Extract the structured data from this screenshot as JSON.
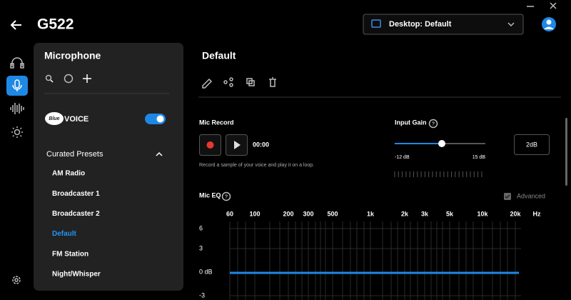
{
  "header": {
    "title": "G522",
    "profile": "Desktop: Default"
  },
  "panel": {
    "title": "Microphone",
    "brand": "Blue",
    "brand_suffix": "VOICE",
    "section": "Curated Presets",
    "presets": [
      "AM Radio",
      "Broadcaster 1",
      "Broadcaster 2",
      "Default",
      "FM Station",
      "Night/Whisper"
    ],
    "selected": 3
  },
  "main": {
    "title": "Default",
    "mic_record": {
      "label": "Mic Record",
      "time": "00:00",
      "hint": "Record a sample of your voice and play it on a loop."
    },
    "input_gain": {
      "label": "Input Gain",
      "min_label": "-12 dB",
      "max_label": "15 dB",
      "value_label": "2dB"
    },
    "mic_eq": {
      "label": "Mic EQ",
      "advanced": "Advanced",
      "freq_labels": [
        "60",
        "100",
        "200",
        "300",
        "500",
        "1k",
        "2k",
        "3k",
        "5k",
        "10k",
        "20k"
      ],
      "unit": "Hz",
      "gain_labels": [
        "6",
        "3",
        "0 dB",
        "-3"
      ]
    }
  }
}
